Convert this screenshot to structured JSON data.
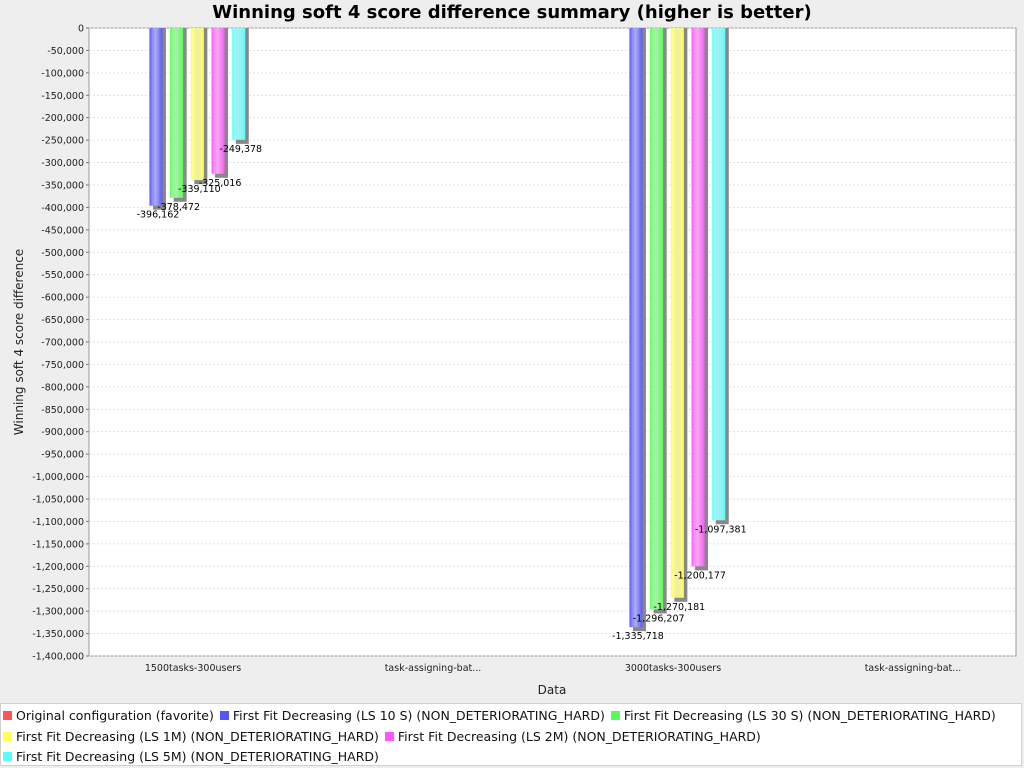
{
  "chart_data": {
    "type": "bar",
    "title": "Winning soft 4 score difference summary (higher is better)",
    "xlabel": "Data",
    "ylabel": "Winning soft 4 score difference",
    "ylim": [
      -1400000,
      0
    ],
    "ytick_step": 50000,
    "categories": [
      "1500tasks-300users",
      "task-assigning-bat...",
      "3000tasks-300users",
      "task-assigning-bat..."
    ],
    "series": [
      {
        "name": "Original configuration (favorite)",
        "color": "#ff5555",
        "values": [
          null,
          null,
          null,
          null
        ]
      },
      {
        "name": "First Fit Decreasing (LS 10 S) (NON_DETERIORATING_HARD)",
        "color": "#5555ff",
        "values": [
          -396162,
          null,
          -1335718,
          null
        ]
      },
      {
        "name": "First Fit Decreasing (LS 30 S) (NON_DETERIORATING_HARD)",
        "color": "#55ff55",
        "values": [
          -378472,
          null,
          -1296207,
          null
        ]
      },
      {
        "name": "First Fit Decreasing (LS 1M) (NON_DETERIORATING_HARD)",
        "color": "#ffff55",
        "values": [
          -339110,
          null,
          -1270181,
          null
        ]
      },
      {
        "name": "First Fit Decreasing (LS 2M) (NON_DETERIORATING_HARD)",
        "color": "#ff55ff",
        "values": [
          -325016,
          null,
          -1200177,
          null
        ]
      },
      {
        "name": "First Fit Decreasing (LS 5M) (NON_DETERIORATING_HARD)",
        "color": "#55ffff",
        "values": [
          -249378,
          null,
          -1097381,
          null
        ]
      }
    ],
    "data_labels": [
      [
        "",
        "",
        "",
        ""
      ],
      [
        "-396,162",
        "",
        "-1,335,718",
        ""
      ],
      [
        "-378,472",
        "",
        "-1,296,207",
        ""
      ],
      [
        "-339,110",
        "",
        "-1,270,181",
        ""
      ],
      [
        "-325,016",
        "",
        "-1,200,177",
        ""
      ],
      [
        "-249,378",
        "",
        "-1,097,381",
        ""
      ]
    ],
    "grid": true,
    "legend_position": "bottom"
  }
}
